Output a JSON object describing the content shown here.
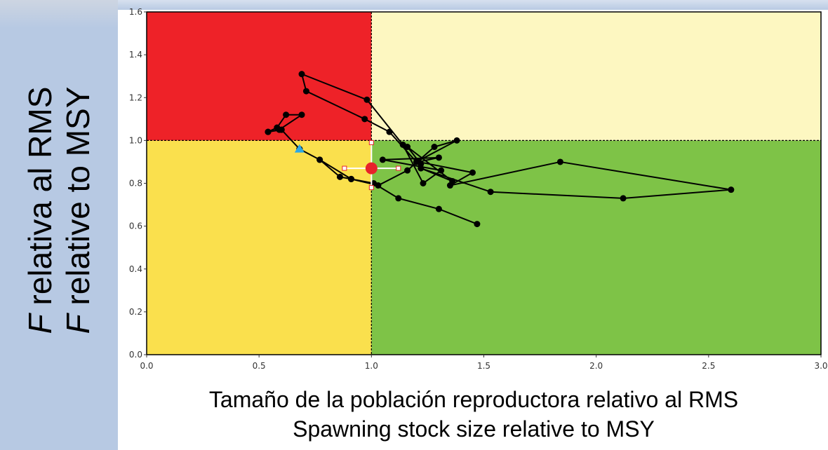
{
  "chart_data": {
    "type": "scatter",
    "xlim": [
      0,
      3.0
    ],
    "ylim": [
      0,
      1.6
    ],
    "x_ticks": [
      "0.0",
      "0.5",
      "1.0",
      "1.5",
      "2.0",
      "2.5",
      "3.0"
    ],
    "y_ticks": [
      "0.0",
      "0.2",
      "0.4",
      "0.6",
      "0.8",
      "1.0",
      "1.2",
      "1.4",
      "1.6"
    ],
    "ylabel_lines": [
      "relativa al RMS",
      "relative to MSY"
    ],
    "ylabel_italic_prefix": "F",
    "xlabel_lines": [
      "Tamaño de la población reproductora relativo al RMS",
      "Spawning stock size relative to MSY"
    ],
    "reference_lines": {
      "x": 1.0,
      "y": 1.0
    },
    "quadrants": [
      {
        "name": "top-left",
        "x": [
          0,
          1.0
        ],
        "y": [
          1.0,
          1.6
        ],
        "color": "#ee2228"
      },
      {
        "name": "top-right",
        "x": [
          1.0,
          3.0
        ],
        "y": [
          1.0,
          1.6
        ],
        "color": "#fdf7c1"
      },
      {
        "name": "bottom-left",
        "x": [
          0,
          1.0
        ],
        "y": [
          0,
          1.0
        ],
        "color": "#fae04d"
      },
      {
        "name": "bottom-right",
        "x": [
          1.0,
          3.0
        ],
        "y": [
          0,
          1.0
        ],
        "color": "#7ec347"
      }
    ],
    "series": [
      {
        "values": [
          [
            1.47,
            0.61
          ],
          [
            1.3,
            0.68
          ],
          [
            1.12,
            0.73
          ],
          [
            1.01,
            0.8
          ],
          [
            0.91,
            0.82
          ],
          [
            0.86,
            0.83
          ],
          [
            0.77,
            0.91
          ],
          [
            0.68,
            0.96
          ],
          [
            0.6,
            1.05
          ],
          [
            0.54,
            1.04
          ],
          [
            0.58,
            1.06
          ],
          [
            0.62,
            1.12
          ],
          [
            0.69,
            1.12
          ],
          [
            0.59,
            1.05
          ],
          [
            0.54,
            1.04
          ],
          [
            0.6,
            1.05
          ],
          [
            0.68,
            0.96
          ],
          [
            0.77,
            0.91
          ],
          [
            0.91,
            0.82
          ],
          [
            1.03,
            0.79
          ],
          [
            1.16,
            0.86
          ],
          [
            1.28,
            0.97
          ],
          [
            1.38,
            1.0
          ],
          [
            1.2,
            0.9
          ],
          [
            1.08,
            1.04
          ],
          [
            0.97,
            1.1
          ],
          [
            0.71,
            1.23
          ],
          [
            0.69,
            1.31
          ],
          [
            0.98,
            1.19
          ],
          [
            1.14,
            0.98
          ],
          [
            1.23,
            0.8
          ],
          [
            1.31,
            0.86
          ],
          [
            1.05,
            0.91
          ],
          [
            1.3,
            0.92
          ],
          [
            1.21,
            0.9
          ],
          [
            1.45,
            0.85
          ],
          [
            1.35,
            0.79
          ],
          [
            1.84,
            0.9
          ],
          [
            2.6,
            0.77
          ],
          [
            2.12,
            0.73
          ],
          [
            1.53,
            0.76
          ],
          [
            1.22,
            0.87
          ],
          [
            1.36,
            0.81
          ],
          [
            1.16,
            0.97
          ],
          [
            1.22,
            0.89
          ]
        ],
        "color": "#000000"
      }
    ],
    "markers": [
      {
        "name": "start-point",
        "shape": "triangle",
        "x": 0.68,
        "y": 0.96,
        "color": "#2ba7e6"
      },
      {
        "name": "current-point",
        "shape": "circle",
        "x": 1.0,
        "y": 0.87,
        "color": "#e8222a",
        "x_interval": [
          0.88,
          1.12
        ],
        "y_interval": [
          0.78,
          0.99
        ]
      }
    ],
    "grid": false
  }
}
